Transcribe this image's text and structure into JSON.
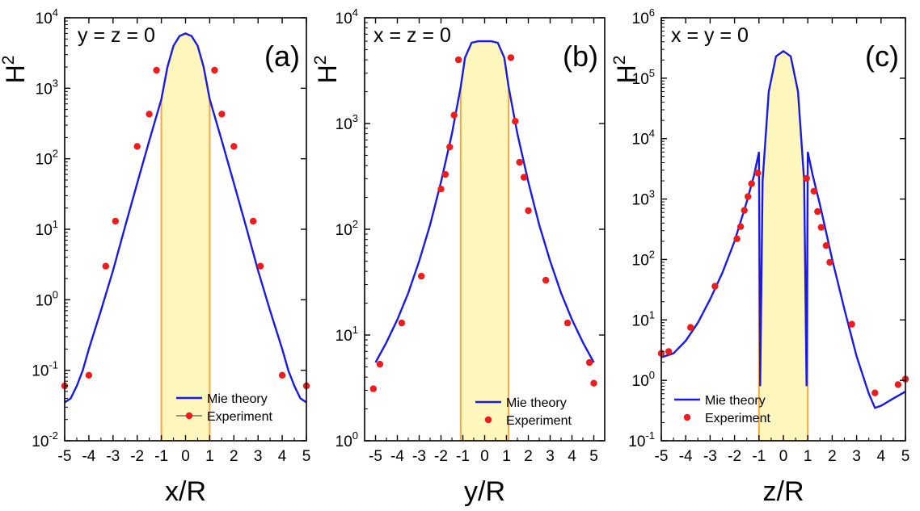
{
  "chart_data": [
    {
      "panel": "(a)",
      "condition": "y = z = 0",
      "type": "line",
      "xlabel": "x/R",
      "ylabel": "H",
      "ylabel_superscript": "2",
      "xlim": [
        -5,
        5
      ],
      "ylim": [
        0.01,
        10000
      ],
      "y_scale": "log",
      "xticks": [
        "-5",
        "-4",
        "-3",
        "-2",
        "-1",
        "0",
        "1",
        "2",
        "3",
        "4",
        "5"
      ],
      "ytick_exponents": [
        "-2",
        "-1",
        "0",
        "1",
        "2",
        "3",
        "4"
      ],
      "shaded_region": [
        -1,
        1
      ],
      "legend": {
        "placement": "bottom-center",
        "entries": [
          "Mie theory",
          "Experiment"
        ]
      },
      "series": [
        {
          "name": "Mie theory",
          "style": "line",
          "color": "#1a1ae6",
          "x": [
            -5,
            -4.75,
            -4.5,
            -4.25,
            -4,
            -3.5,
            -3,
            -2.5,
            -2,
            -1.5,
            -1,
            -0.75,
            -0.5,
            -0.25,
            0,
            0.25,
            0.5,
            0.75,
            1,
            1.5,
            2,
            2.5,
            3,
            3.5,
            4,
            4.25,
            4.5,
            4.75,
            5
          ],
          "y": [
            0.035,
            0.04,
            0.06,
            0.1,
            0.2,
            0.7,
            2.6,
            11,
            45,
            180,
            700,
            2000,
            4000,
            5500,
            6000,
            5500,
            4000,
            2000,
            700,
            180,
            45,
            11,
            2.6,
            0.7,
            0.2,
            0.1,
            0.06,
            0.04,
            0.035
          ]
        },
        {
          "name": "Experiment",
          "style": "points",
          "color": "#ee1c1c",
          "x": [
            -5,
            -4,
            -3.3,
            -2.9,
            -2,
            -1.5,
            -1.2,
            1.2,
            1.5,
            2,
            2.8,
            3.1,
            4,
            5
          ],
          "y": [
            0.06,
            0.085,
            3,
            13,
            150,
            430,
            1800,
            1800,
            430,
            150,
            13,
            3,
            0.085,
            0.06
          ]
        }
      ]
    },
    {
      "panel": "(b)",
      "condition": "x = z = 0",
      "type": "line",
      "xlabel": "y/R",
      "ylabel": "H",
      "ylabel_superscript": "2",
      "xlim": [
        -5.5,
        5.5
      ],
      "ylim": [
        1,
        10000
      ],
      "y_scale": "log",
      "xticks": [
        "-5",
        "-4",
        "-3",
        "-2",
        "-1",
        "0",
        "1",
        "2",
        "3",
        "4",
        "5"
      ],
      "ytick_exponents": [
        "0",
        "1",
        "2",
        "3",
        "4"
      ],
      "shaded_region": [
        -1.1,
        1.1
      ],
      "legend": {
        "placement": "bottom-right",
        "entries": [
          "Mie theory",
          "Experiment"
        ]
      },
      "series": [
        {
          "name": "Mie theory",
          "style": "line",
          "color": "#1a1ae6",
          "x": [
            -5,
            -4.5,
            -4,
            -3.5,
            -3,
            -2.5,
            -2,
            -1.5,
            -1.1,
            -0.9,
            -0.6,
            -0.3,
            0,
            0.3,
            0.6,
            0.9,
            1.1,
            1.5,
            2,
            2.5,
            3,
            3.5,
            4,
            4.5,
            5
          ],
          "y": [
            5.5,
            8.5,
            14,
            25,
            50,
            110,
            280,
            800,
            2200,
            4200,
            5800,
            6000,
            6000,
            6000,
            5800,
            4200,
            2200,
            800,
            280,
            110,
            50,
            25,
            14,
            8.5,
            5.5
          ]
        },
        {
          "name": "Experiment",
          "style": "points",
          "color": "#ee1c1c",
          "x": [
            -5.1,
            -4.8,
            -3.8,
            -2.9,
            -2,
            -1.8,
            -1.6,
            -1.4,
            -1.2,
            1.2,
            1.4,
            1.6,
            1.8,
            2,
            2.8,
            3.8,
            4.8,
            5
          ],
          "y": [
            3.1,
            5.3,
            13,
            36,
            240,
            330,
            600,
            1200,
            4000,
            4200,
            1050,
            430,
            310,
            150,
            33,
            13,
            5.5,
            3.5
          ]
        }
      ]
    },
    {
      "panel": "(c)",
      "condition": "x = y = 0",
      "type": "line",
      "xlabel": "z/R",
      "ylabel": "H",
      "ylabel_superscript": "2",
      "xlim": [
        -5,
        5
      ],
      "ylim": [
        0.1,
        1000000
      ],
      "y_scale": "log",
      "xticks": [
        "-5",
        "-4",
        "-3",
        "-2",
        "-1",
        "0",
        "1",
        "2",
        "3",
        "4",
        "5"
      ],
      "ytick_exponents": [
        "-1",
        "0",
        "1",
        "2",
        "3",
        "4",
        "5",
        "6"
      ],
      "shaded_region": [
        -1,
        1
      ],
      "legend": {
        "placement": "bottom-left",
        "entries": [
          "Mie theory",
          "Experiment"
        ]
      },
      "series": [
        {
          "name": "Mie theory",
          "style": "line",
          "color": "#1a1ae6",
          "x": [
            -5,
            -4.5,
            -4,
            -3.5,
            -3,
            -2.5,
            -2,
            -1.5,
            -1.2,
            -1,
            -0.95,
            -0.85,
            -0.6,
            -0.3,
            0,
            0.3,
            0.6,
            0.85,
            0.95,
            1,
            1.2,
            1.5,
            2,
            2.5,
            3,
            3.5,
            3.75,
            4,
            4.5,
            5
          ],
          "y": [
            2.4,
            2.8,
            4.5,
            9,
            22,
            60,
            200,
            900,
            2500,
            6000,
            0.8,
            2000,
            60000,
            230000,
            280000,
            230000,
            60000,
            2000,
            0.8,
            6000,
            2500,
            800,
            100,
            15,
            2.5,
            0.6,
            0.35,
            0.38,
            0.5,
            0.65
          ]
        },
        {
          "name": "Experiment",
          "style": "points",
          "color": "#ee1c1c",
          "x": [
            -5,
            -4.7,
            -3.8,
            -2.8,
            -1.9,
            -1.75,
            -1.6,
            -1.45,
            -1.3,
            -1.05,
            0.95,
            1.25,
            1.4,
            1.55,
            1.75,
            1.9,
            2.8,
            3.75,
            4.7,
            5
          ],
          "y": [
            2.8,
            3,
            7.5,
            36,
            220,
            350,
            650,
            1100,
            1800,
            2700,
            2200,
            1350,
            620,
            340,
            170,
            90,
            8.5,
            0.62,
            0.85,
            1.05
          ]
        }
      ]
    }
  ]
}
